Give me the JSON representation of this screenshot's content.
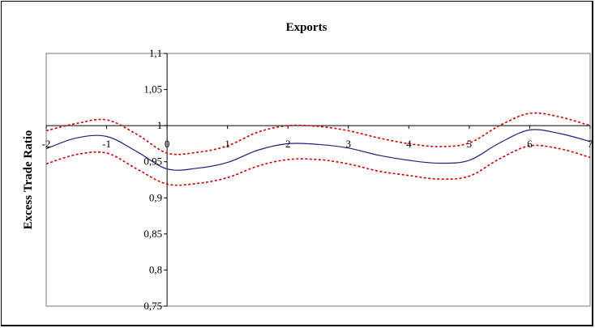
{
  "chart_data": {
    "type": "line",
    "title": "Exports",
    "xlabel": "",
    "ylabel": "Excess Trade Ratio",
    "xlim": [
      -2,
      7
    ],
    "ylim": [
      0.75,
      1.1
    ],
    "grid": false,
    "legend": "none",
    "x_ticks": [
      "-2",
      "-1",
      "0",
      "1",
      "2",
      "3",
      "4",
      "5",
      "6",
      "7"
    ],
    "y_ticks": [
      "1,1",
      "1,05",
      "1",
      "0,95",
      "0,9",
      "0,85",
      "0,8",
      "0,75"
    ],
    "x": [
      -2,
      -1.5,
      -1,
      -0.5,
      0,
      0.5,
      1,
      1.5,
      2,
      2.5,
      3,
      3.5,
      4,
      4.5,
      5,
      5.5,
      6,
      6.5,
      7
    ],
    "series": [
      {
        "role": "estimate",
        "style": "solid",
        "color": "#1a237e",
        "values": [
          0.968,
          0.983,
          0.985,
          0.964,
          0.94,
          0.941,
          0.949,
          0.966,
          0.975,
          0.974,
          0.969,
          0.959,
          0.952,
          0.948,
          0.952,
          0.976,
          0.994,
          0.989,
          0.978
        ]
      },
      {
        "role": "upper-band",
        "style": "dashed",
        "color": "#cc0000",
        "values": [
          0.993,
          1.003,
          1.008,
          0.988,
          0.962,
          0.963,
          0.972,
          0.991,
          1.0,
          0.999,
          0.993,
          0.983,
          0.975,
          0.971,
          0.976,
          1.0,
          1.017,
          1.012,
          1.0
        ]
      },
      {
        "role": "lower-band",
        "style": "dashed",
        "color": "#cc0000",
        "values": [
          0.947,
          0.96,
          0.962,
          0.94,
          0.919,
          0.92,
          0.928,
          0.944,
          0.953,
          0.953,
          0.947,
          0.937,
          0.931,
          0.926,
          0.93,
          0.954,
          0.972,
          0.968,
          0.956
        ]
      }
    ]
  }
}
